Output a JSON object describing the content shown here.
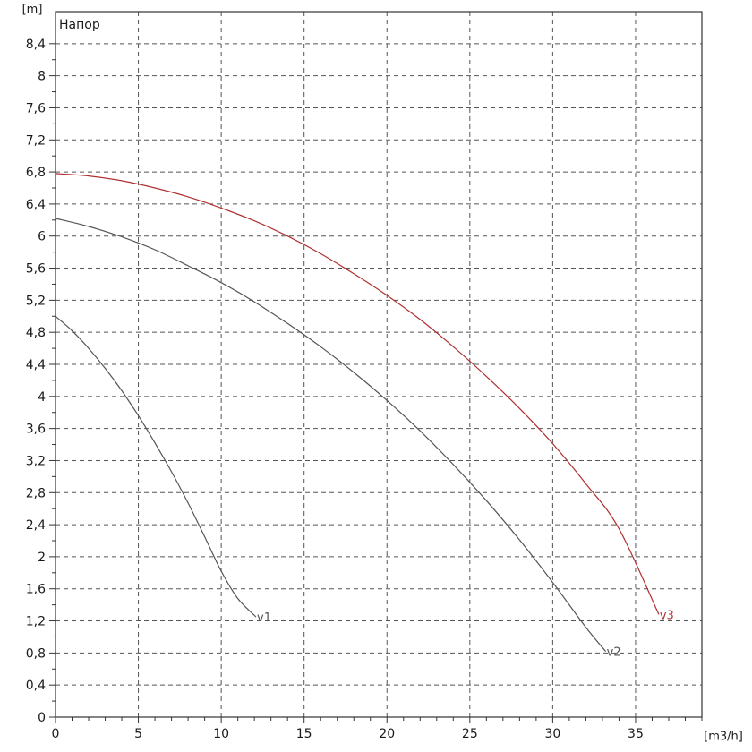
{
  "chart_data": {
    "type": "line",
    "title": "",
    "inside_label": "Напор",
    "xunit": "[m3/h]",
    "yunit": "[m]",
    "xlim": [
      0,
      39
    ],
    "ylim": [
      0,
      8.8
    ],
    "x_ticks": [
      0,
      5,
      10,
      15,
      20,
      25,
      30,
      35
    ],
    "x_tick_labels": [
      "0",
      "5",
      "10",
      "15",
      "20",
      "25",
      "30",
      "35"
    ],
    "y_ticks": [
      0,
      0.4,
      0.8,
      1.2,
      1.6,
      2,
      2.4,
      2.8,
      3.2,
      3.6,
      4,
      4.4,
      4.8,
      5.2,
      5.6,
      6,
      6.4,
      6.8,
      7.2,
      7.6,
      8,
      8.4
    ],
    "y_tick_labels": [
      "0",
      "0,4",
      "0,8",
      "1,2",
      "1,6",
      "2",
      "2,4",
      "2,8",
      "3,2",
      "3,6",
      "4",
      "4,4",
      "4,8",
      "5,2",
      "5,6",
      "6",
      "6,4",
      "6,8",
      "7,2",
      "7,6",
      "8",
      "8,4"
    ],
    "x_minor_step": 1,
    "grid": "dashed",
    "series": [
      {
        "name": "v1",
        "color": "#555555",
        "x": [
          0,
          1,
          2,
          3,
          4,
          5,
          6,
          7,
          8,
          9,
          10,
          11,
          12.1
        ],
        "y": [
          5.0,
          4.82,
          4.6,
          4.35,
          4.07,
          3.76,
          3.42,
          3.06,
          2.67,
          2.25,
          1.82,
          1.48,
          1.25
        ]
      },
      {
        "name": "v2",
        "color": "#555555",
        "x": [
          0,
          2,
          4,
          6,
          8,
          10,
          12,
          14,
          16,
          18,
          20,
          22,
          24,
          26,
          28,
          30,
          32,
          33.2
        ],
        "y": [
          6.22,
          6.12,
          5.99,
          5.83,
          5.63,
          5.42,
          5.18,
          4.91,
          4.62,
          4.3,
          3.95,
          3.57,
          3.15,
          2.7,
          2.21,
          1.68,
          1.12,
          0.82
        ]
      },
      {
        "name": "v3",
        "color": "#b03030",
        "x": [
          0,
          2,
          4,
          6,
          8,
          10,
          12,
          14,
          16,
          18,
          20,
          22,
          24,
          26,
          28,
          30,
          32,
          34,
          36.4
        ],
        "y": [
          6.78,
          6.75,
          6.69,
          6.6,
          6.49,
          6.35,
          6.19,
          6.0,
          5.78,
          5.53,
          5.26,
          4.96,
          4.62,
          4.25,
          3.85,
          3.41,
          2.91,
          2.35,
          1.28
        ]
      }
    ]
  }
}
